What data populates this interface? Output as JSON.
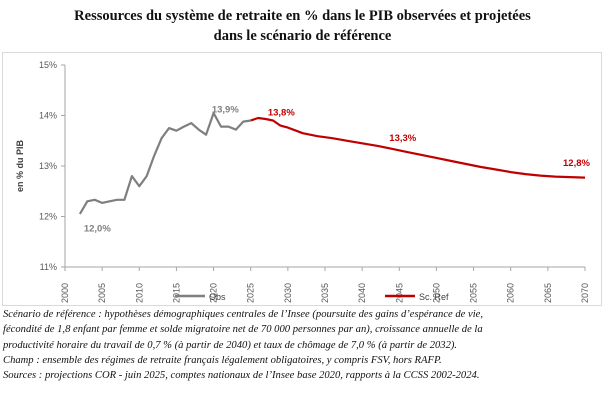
{
  "title_line1": "Ressources du système de retraite en % dans le PIB observées et projetées",
  "title_line2": "dans le scénario de référence",
  "notes": [
    "Scénario de référence : hypothèses démographiques centrales de l’Insee (poursuite des gains d’espérance de vie,",
    "fécondité de 1,8 enfant par femme et solde migratoire net de 70 000 personnes par an), croissance annuelle de la",
    "productivité horaire du travail de 0,7 % (à partir de 2040) et taux de chômage de 7,0 % (à partir de 2032).",
    "Champ : ensemble des régimes de retraite français légalement obligatoires, y compris FSV, hors RAFP.",
    "Sources : projections COR - juin 2025, comptes nationaux de l’Insee base 2020, rapports à la CCSS 2002-2024."
  ],
  "chart_data": {
    "type": "line",
    "ylabel": "en % du PIB",
    "xlabel": "",
    "xlim": [
      2000,
      2070
    ],
    "ylim": [
      11,
      15
    ],
    "x_ticks": [
      "2000",
      "2005",
      "2010",
      "2015",
      "2020",
      "2025",
      "2030",
      "2035",
      "2040",
      "2045",
      "2050",
      "2055",
      "2060",
      "2065",
      "2070"
    ],
    "y_ticks": [
      "11%",
      "12%",
      "13%",
      "14%",
      "15%"
    ],
    "grid": false,
    "legend_position": "bottom",
    "series": [
      {
        "name": "Obs",
        "color": "#7f7f7f",
        "points": [
          [
            2002,
            12.05
          ],
          [
            2003,
            12.3
          ],
          [
            2004,
            12.33
          ],
          [
            2005,
            12.27
          ],
          [
            2006,
            12.3
          ],
          [
            2007,
            12.33
          ],
          [
            2008,
            12.33
          ],
          [
            2009,
            12.8
          ],
          [
            2010,
            12.6
          ],
          [
            2011,
            12.8
          ],
          [
            2012,
            13.2
          ],
          [
            2013,
            13.55
          ],
          [
            2014,
            13.75
          ],
          [
            2015,
            13.7
          ],
          [
            2016,
            13.78
          ],
          [
            2017,
            13.85
          ],
          [
            2018,
            13.72
          ],
          [
            2019,
            13.62
          ],
          [
            2020,
            14.05
          ],
          [
            2021,
            13.78
          ],
          [
            2022,
            13.78
          ],
          [
            2023,
            13.72
          ],
          [
            2024,
            13.88
          ],
          [
            2025,
            13.9
          ]
        ]
      },
      {
        "name": "Sc. Ref",
        "color": "#c00000",
        "points": [
          [
            2025,
            13.9
          ],
          [
            2026,
            13.95
          ],
          [
            2027,
            13.93
          ],
          [
            2028,
            13.9
          ],
          [
            2029,
            13.8
          ],
          [
            2030,
            13.76
          ],
          [
            2032,
            13.65
          ],
          [
            2034,
            13.59
          ],
          [
            2036,
            13.55
          ],
          [
            2038,
            13.5
          ],
          [
            2040,
            13.45
          ],
          [
            2042,
            13.4
          ],
          [
            2044,
            13.34
          ],
          [
            2046,
            13.28
          ],
          [
            2048,
            13.22
          ],
          [
            2050,
            13.16
          ],
          [
            2052,
            13.1
          ],
          [
            2054,
            13.04
          ],
          [
            2056,
            12.98
          ],
          [
            2058,
            12.93
          ],
          [
            2060,
            12.88
          ],
          [
            2062,
            12.84
          ],
          [
            2064,
            12.81
          ],
          [
            2066,
            12.79
          ],
          [
            2068,
            12.78
          ],
          [
            2070,
            12.77
          ]
        ]
      }
    ],
    "annotations": [
      {
        "x": 2002,
        "y": 12.0,
        "text": "12,0%",
        "color": "#7f7f7f"
      },
      {
        "x": 2023,
        "y": 13.9,
        "text": "13,9%",
        "color": "#7f7f7f"
      },
      {
        "x": 2030,
        "y": 13.8,
        "text": "13,8%",
        "color": "#c00000"
      },
      {
        "x": 2045,
        "y": 13.3,
        "text": "13,3%",
        "color": "#c00000"
      },
      {
        "x": 2070,
        "y": 12.8,
        "text": "12,8%",
        "color": "#c00000"
      }
    ]
  }
}
